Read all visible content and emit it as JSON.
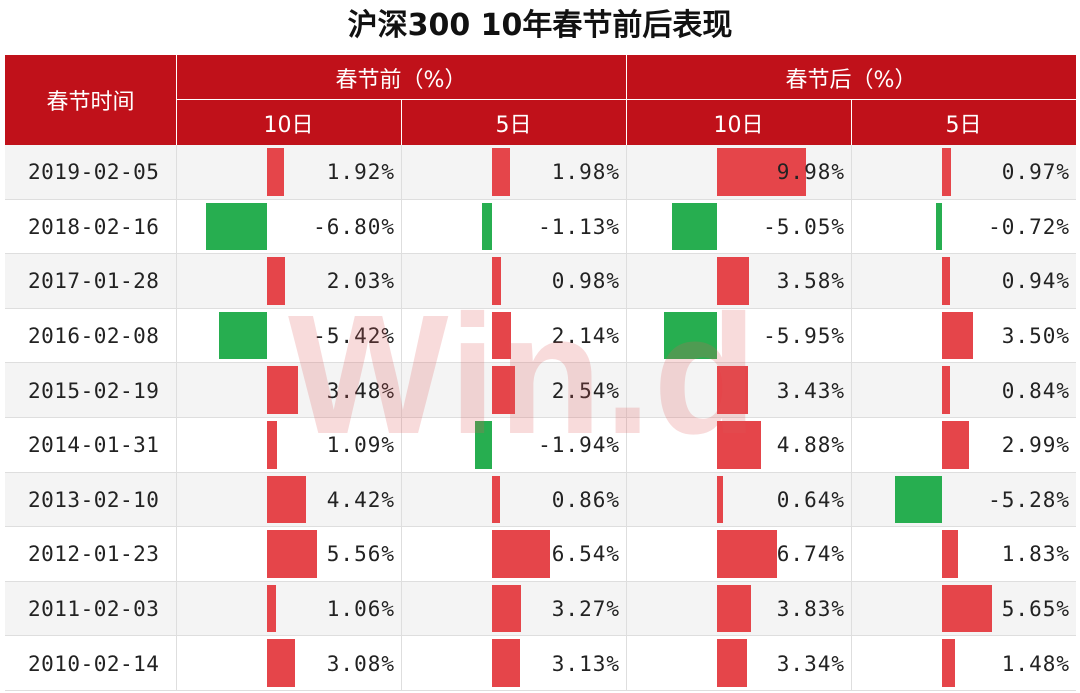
{
  "title": "沪深300 10年春节前后表现",
  "header": {
    "date_col": "春节时间",
    "group_before": "春节前（%）",
    "group_after": "春节后（%）",
    "sub_10": "10日",
    "sub_5": "5日"
  },
  "watermark": "Win.d",
  "colors": {
    "header_bg": "#c0111a",
    "positive": "#e5454a",
    "negative": "#27ae50"
  },
  "chart_data": {
    "type": "table",
    "columns": [
      "春节前 10日",
      "春节前 5日",
      "春节后 10日",
      "春节后 5日"
    ],
    "rows": [
      {
        "date": "2019-02-05",
        "values": [
          1.92,
          1.98,
          9.98,
          0.97
        ],
        "labels": [
          "1.92%",
          "1.98%",
          "9.98%",
          "0.97%"
        ]
      },
      {
        "date": "2018-02-16",
        "values": [
          -6.8,
          -1.13,
          -5.05,
          -0.72
        ],
        "labels": [
          "-6.80%",
          "-1.13%",
          "-5.05%",
          "-0.72%"
        ]
      },
      {
        "date": "2017-01-28",
        "values": [
          2.03,
          0.98,
          3.58,
          0.94
        ],
        "labels": [
          "2.03%",
          "0.98%",
          "3.58%",
          "0.94%"
        ]
      },
      {
        "date": "2016-02-08",
        "values": [
          -5.42,
          2.14,
          -5.95,
          3.5
        ],
        "labels": [
          "-5.42%",
          "2.14%",
          "-5.95%",
          "3.50%"
        ]
      },
      {
        "date": "2015-02-19",
        "values": [
          3.48,
          2.54,
          3.43,
          0.84
        ],
        "labels": [
          "3.48%",
          "2.54%",
          "3.43%",
          "0.84%"
        ]
      },
      {
        "date": "2014-01-31",
        "values": [
          1.09,
          -1.94,
          4.88,
          2.99
        ],
        "labels": [
          "1.09%",
          "-1.94%",
          "4.88%",
          "2.99%"
        ]
      },
      {
        "date": "2013-02-10",
        "values": [
          4.42,
          0.86,
          0.64,
          -5.28
        ],
        "labels": [
          "4.42%",
          "0.86%",
          "0.64%",
          "-5.28%"
        ]
      },
      {
        "date": "2012-01-23",
        "values": [
          5.56,
          6.54,
          6.74,
          1.83
        ],
        "labels": [
          "5.56%",
          "6.54%",
          "6.74%",
          "1.83%"
        ]
      },
      {
        "date": "2011-02-03",
        "values": [
          1.06,
          3.27,
          3.83,
          5.65
        ],
        "labels": [
          "1.06%",
          "3.27%",
          "3.83%",
          "5.65%"
        ]
      },
      {
        "date": "2010-02-14",
        "values": [
          3.08,
          3.13,
          3.34,
          1.48
        ],
        "labels": [
          "3.08%",
          "3.13%",
          "3.34%",
          "1.48%"
        ]
      }
    ]
  }
}
